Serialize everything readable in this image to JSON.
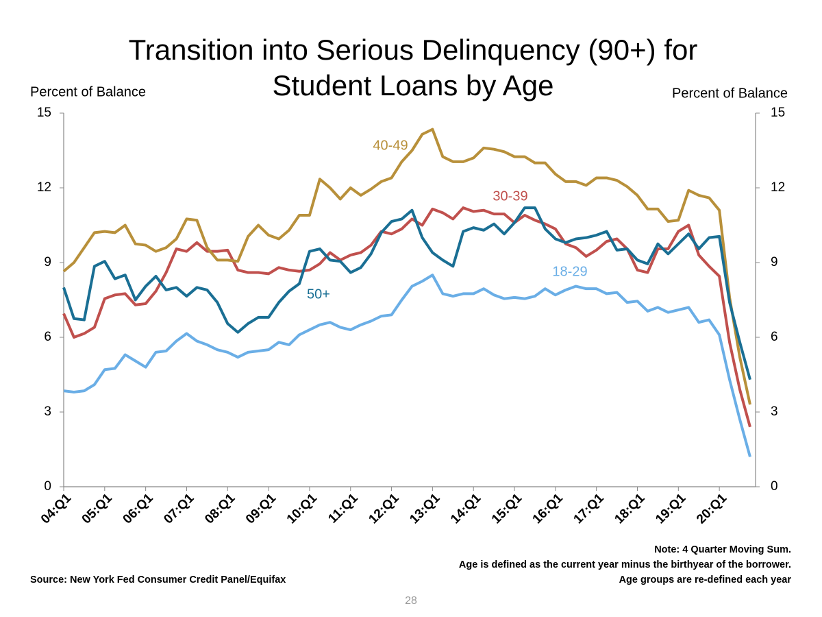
{
  "chart_data": {
    "type": "line",
    "title": [
      "Transition into Serious Delinquency (90+) for",
      "Student Loans by Age"
    ],
    "y_label": "Percent of Balance",
    "y2_label": "Percent of Balance",
    "categories": [
      "04:Q1",
      null,
      null,
      null,
      "05:Q1",
      null,
      null,
      null,
      "06:Q1",
      null,
      null,
      null,
      "07:Q1",
      null,
      null,
      null,
      "08:Q1",
      null,
      null,
      null,
      "09:Q1",
      null,
      null,
      null,
      "10:Q1",
      null,
      null,
      null,
      "11:Q1",
      null,
      null,
      null,
      "12:Q1",
      null,
      null,
      null,
      "13:Q1",
      null,
      null,
      null,
      "14:Q1",
      null,
      null,
      null,
      "15:Q1",
      null,
      null,
      null,
      "16:Q1",
      null,
      null,
      null,
      "17:Q1",
      null,
      null,
      null,
      "18:Q1",
      null,
      null,
      null,
      "19:Q1",
      null,
      null,
      null,
      "20:Q1",
      null,
      null,
      null
    ],
    "series": [
      {
        "name": "18-29",
        "color": "#6aaee6",
        "values": [
          3.85,
          3.8,
          3.85,
          4.1,
          4.7,
          4.75,
          5.3,
          5.05,
          4.8,
          5.4,
          5.45,
          5.85,
          6.15,
          5.85,
          5.7,
          5.5,
          5.4,
          5.2,
          5.4,
          5.45,
          5.5,
          5.8,
          5.7,
          6.1,
          6.3,
          6.5,
          6.6,
          6.4,
          6.3,
          6.5,
          6.65,
          6.85,
          6.9,
          7.5,
          8.05,
          8.25,
          8.5,
          7.75,
          7.65,
          7.75,
          7.75,
          7.95,
          7.7,
          7.55,
          7.6,
          7.55,
          7.65,
          7.95,
          7.7,
          7.9,
          8.05,
          7.95,
          7.95,
          7.75,
          7.8,
          7.4,
          7.45,
          7.05,
          7.2,
          7.0,
          7.1,
          7.2,
          6.6,
          6.7,
          6.1,
          4.3,
          2.7,
          1.2
        ]
      },
      {
        "name": "30-39",
        "color": "#c0504d",
        "values": [
          6.95,
          6.0,
          6.15,
          6.4,
          7.55,
          7.7,
          7.75,
          7.3,
          7.35,
          7.85,
          8.6,
          9.55,
          9.45,
          9.8,
          9.45,
          9.45,
          9.5,
          8.7,
          8.6,
          8.6,
          8.55,
          8.8,
          8.7,
          8.65,
          8.7,
          8.95,
          9.4,
          9.1,
          9.3,
          9.4,
          9.7,
          10.25,
          10.15,
          10.35,
          10.75,
          10.5,
          11.15,
          11.0,
          10.75,
          11.2,
          11.05,
          11.1,
          10.95,
          10.95,
          10.6,
          10.9,
          10.7,
          10.55,
          10.35,
          9.75,
          9.6,
          9.25,
          9.5,
          9.85,
          9.95,
          9.55,
          8.7,
          8.6,
          9.55,
          9.55,
          10.25,
          10.5,
          9.3,
          8.85,
          8.45,
          5.8,
          3.9,
          2.4
        ]
      },
      {
        "name": "40-49",
        "color": "#b8903a",
        "values": [
          8.65,
          9.0,
          9.6,
          10.2,
          10.25,
          10.2,
          10.5,
          9.75,
          9.7,
          9.45,
          9.6,
          9.95,
          10.75,
          10.7,
          9.6,
          9.1,
          9.1,
          9.05,
          10.05,
          10.5,
          10.1,
          9.95,
          10.3,
          10.9,
          10.9,
          12.35,
          12.0,
          11.55,
          12.0,
          11.7,
          11.95,
          12.25,
          12.4,
          13.05,
          13.5,
          14.15,
          14.35,
          13.25,
          13.05,
          13.05,
          13.2,
          13.6,
          13.55,
          13.45,
          13.25,
          13.25,
          13.0,
          13.0,
          12.55,
          12.25,
          12.25,
          12.1,
          12.4,
          12.4,
          12.3,
          12.05,
          11.7,
          11.15,
          11.15,
          10.65,
          10.7,
          11.9,
          11.7,
          11.6,
          11.1,
          7.6,
          5.2,
          3.3
        ]
      },
      {
        "name": "50+",
        "color": "#1a6f94",
        "values": [
          8.0,
          6.75,
          6.7,
          8.85,
          9.05,
          8.35,
          8.5,
          7.5,
          8.05,
          8.45,
          7.9,
          8.0,
          7.65,
          8.0,
          7.9,
          7.4,
          6.55,
          6.2,
          6.55,
          6.8,
          6.8,
          7.4,
          7.85,
          8.15,
          9.45,
          9.55,
          9.1,
          9.05,
          8.6,
          8.8,
          9.35,
          10.2,
          10.65,
          10.75,
          11.1,
          10.0,
          9.4,
          9.1,
          8.85,
          10.25,
          10.4,
          10.3,
          10.55,
          10.15,
          10.6,
          11.2,
          11.2,
          10.35,
          9.95,
          9.8,
          9.95,
          10.0,
          10.1,
          10.25,
          9.5,
          9.55,
          9.1,
          8.95,
          9.75,
          9.35,
          9.75,
          10.15,
          9.55,
          10.0,
          10.05,
          7.4,
          5.8,
          4.3
        ]
      }
    ],
    "ylim": [
      0,
      15
    ],
    "yticks": [
      0,
      3,
      6,
      9,
      12,
      15
    ],
    "y2lim": [
      0,
      15
    ],
    "y2ticks": [
      0,
      3,
      6,
      9,
      12,
      15
    ],
    "notes": [
      "Note: 4 Quarter Moving Sum.",
      "Age is defined as the current year minus the birthyear of the borrower.",
      "Age groups are re-defined each year"
    ],
    "source": "Source: New York Fed Consumer Credit Panel/Equifax",
    "page_number": "28"
  }
}
